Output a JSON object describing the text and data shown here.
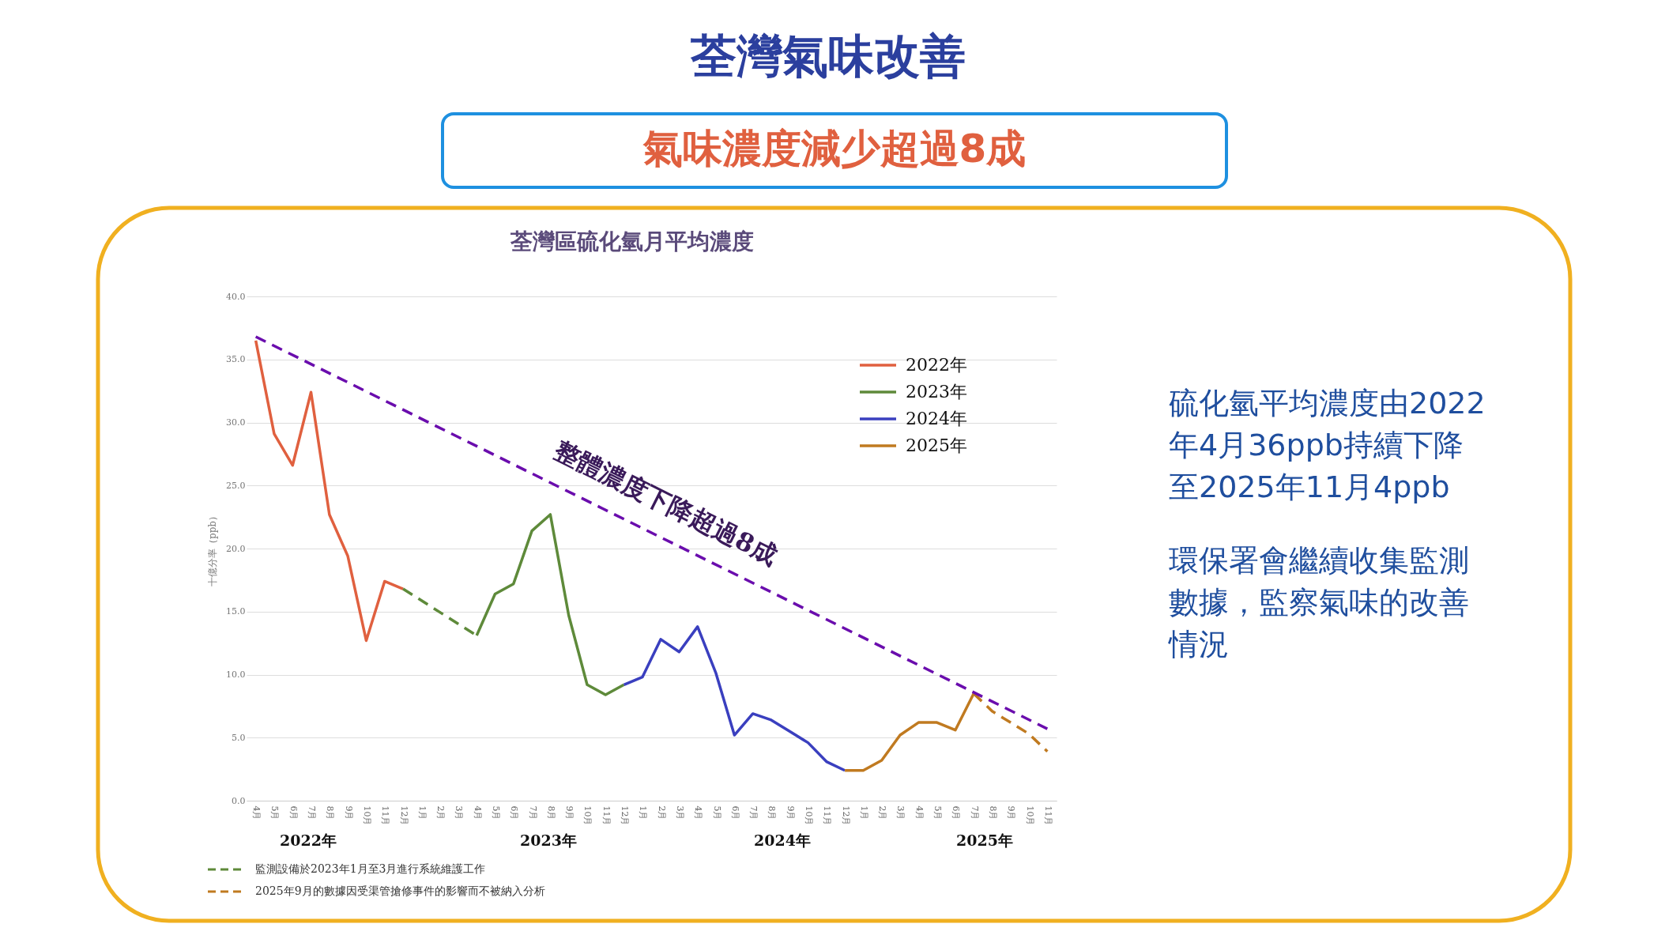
{
  "chart_data": {
    "type": "line",
    "title": "荃灣氣味改善",
    "subtitle": "氣味濃度減少超過8成",
    "ylabel": "十億分率（ppb）",
    "categories": [
      "4月",
      "5月",
      "6月",
      "7月",
      "8月",
      "9月",
      "10月",
      "11月",
      "12月",
      "1月",
      "2月",
      "3月",
      "4月",
      "5月",
      "6月",
      "7月",
      "8月",
      "9月",
      "10月",
      "11月",
      "12月",
      "1月",
      "2月",
      "3月",
      "4月",
      "5月",
      "6月",
      "7月",
      "8月",
      "9月",
      "10月",
      "11月",
      "12月",
      "1月",
      "2月",
      "3月",
      "4月",
      "5月",
      "6月",
      "7月",
      "8月",
      "9月",
      "10月",
      "11月"
    ],
    "ylim": [
      0,
      40
    ],
    "yticks": [
      {
        "value": 0,
        "label": "0.0"
      },
      {
        "value": 5,
        "label": "5.0"
      },
      {
        "value": 10,
        "label": "10.0"
      },
      {
        "value": 15,
        "label": "15.0"
      },
      {
        "value": 20,
        "label": "20.0"
      },
      {
        "value": 25,
        "label": "25.0"
      },
      {
        "value": 30,
        "label": "30.0"
      },
      {
        "value": 35,
        "label": "35.0"
      },
      {
        "value": 40,
        "label": "40.0"
      }
    ],
    "grid": "y",
    "legend": "top right",
    "series": [
      {
        "name": "2022年",
        "color": "#e0603f",
        "values": [
          36.5,
          29.1,
          26.6,
          32.4,
          22.7,
          19.4,
          12.7,
          17.4,
          16.8,
          null,
          null,
          null,
          null,
          null,
          null,
          null,
          null,
          null,
          null,
          null,
          null,
          null,
          null,
          null,
          null,
          null,
          null,
          null,
          null,
          null,
          null,
          null,
          null,
          null,
          null,
          null,
          null,
          null,
          null,
          null,
          null,
          null,
          null,
          null
        ]
      },
      {
        "name": "2023年",
        "color": "#5e8a3a",
        "values": [
          null,
          null,
          null,
          null,
          null,
          null,
          null,
          null,
          null,
          null,
          null,
          null,
          13.1,
          16.4,
          17.2,
          21.4,
          22.7,
          14.7,
          9.2,
          8.4,
          9.2,
          null,
          null,
          null,
          null,
          null,
          null,
          null,
          null,
          null,
          null,
          null,
          null,
          null,
          null,
          null,
          null,
          null,
          null,
          null,
          null,
          null,
          null,
          null
        ]
      },
      {
        "name": "2024年",
        "color": "#3a3fbf",
        "values": [
          null,
          null,
          null,
          null,
          null,
          null,
          null,
          null,
          null,
          null,
          null,
          null,
          null,
          null,
          null,
          null,
          null,
          null,
          null,
          null,
          9.2,
          9.8,
          12.8,
          11.8,
          13.8,
          10.1,
          5.2,
          6.9,
          6.4,
          5.5,
          4.6,
          3.1,
          2.4,
          null,
          null,
          null,
          null,
          null,
          null,
          null,
          null,
          null,
          null,
          null
        ]
      },
      {
        "name": "2025年",
        "color": "#c07a20",
        "values": [
          null,
          null,
          null,
          null,
          null,
          null,
          null,
          null,
          null,
          null,
          null,
          null,
          null,
          null,
          null,
          null,
          null,
          null,
          null,
          null,
          null,
          null,
          null,
          null,
          null,
          null,
          null,
          null,
          null,
          null,
          null,
          null,
          2.4,
          2.4,
          3.2,
          5.2,
          6.2,
          6.2,
          5.6,
          8.5,
          null,
          null,
          null,
          null
        ]
      },
      {
        "color": "#5e8a3a",
        "line_style": "dashed",
        "values": [
          null,
          null,
          null,
          null,
          null,
          null,
          null,
          null,
          16.8,
          null,
          null,
          null,
          13.1,
          null,
          null,
          null,
          null,
          null,
          null,
          null,
          null,
          null,
          null,
          null,
          null,
          null,
          null,
          null,
          null,
          null,
          null,
          null,
          null,
          null,
          null,
          null,
          null,
          null,
          null,
          null,
          null,
          null,
          null,
          null
        ]
      },
      {
        "color": "#c07a20",
        "line_style": "dashed",
        "values": [
          null,
          null,
          null,
          null,
          null,
          null,
          null,
          null,
          null,
          null,
          null,
          null,
          null,
          null,
          null,
          null,
          null,
          null,
          null,
          null,
          null,
          null,
          null,
          null,
          null,
          null,
          null,
          null,
          null,
          null,
          null,
          null,
          null,
          null,
          null,
          null,
          null,
          null,
          null,
          8.5,
          7.1,
          6.2,
          5.3,
          3.9
        ]
      },
      {
        "color": "#6a0dad",
        "line_style": "dashed",
        "values": [
          36.8,
          null,
          null,
          null,
          null,
          null,
          null,
          null,
          null,
          null,
          null,
          null,
          null,
          null,
          null,
          null,
          null,
          null,
          null,
          null,
          null,
          null,
          null,
          null,
          null,
          null,
          null,
          null,
          null,
          null,
          null,
          null,
          null,
          null,
          null,
          null,
          null,
          null,
          null,
          null,
          null,
          null,
          null,
          5.7
        ]
      }
    ],
    "annotations": [
      "荃灣區硫化氫月平均濃度",
      "整體濃度下降超過8成",
      "硫化氫平均濃度由2022年4月36ppb持續下降至2025年11月4ppb",
      "環保署會繼續收集監測數據，監察氣味的改善情況",
      "2022年",
      "2023年",
      "2024年",
      "2025年",
      "監測設備於2023年1月至3月進行系統維護工作",
      "2025年9月的數據因受渠管搶修事件的影響而不被納入分析"
    ]
  }
}
